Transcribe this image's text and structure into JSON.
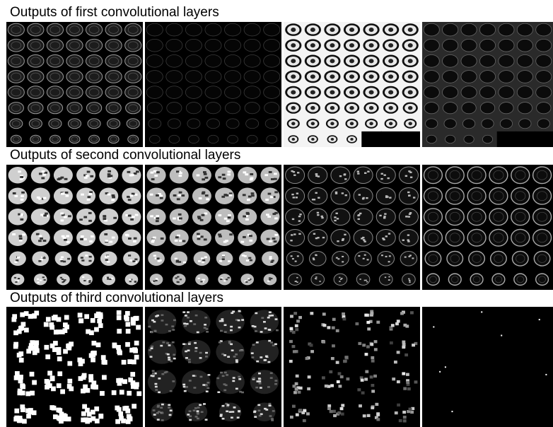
{
  "sections": [
    {
      "title": "Outputs of first convolutional layers",
      "panels": [
        {
          "style": "dark-edges",
          "cols": 7,
          "rows": 8,
          "cut": 0
        },
        {
          "style": "faint-edges",
          "cols": 7,
          "rows": 8,
          "cut": 0
        },
        {
          "style": "bright-inverted",
          "cols": 7,
          "rows": 8,
          "cut": 3
        },
        {
          "style": "gray-smooth",
          "cols": 7,
          "rows": 8,
          "cut": 3
        }
      ]
    },
    {
      "title": "Outputs of second convolutional layers",
      "panels": [
        {
          "style": "bright-blobs",
          "cols": 6,
          "rows": 6,
          "cut": 0
        },
        {
          "style": "textured-bright",
          "cols": 6,
          "rows": 6,
          "cut": 0
        },
        {
          "style": "edge-sparse",
          "cols": 6,
          "rows": 6,
          "cut": 0
        },
        {
          "style": "ring-edges",
          "cols": 6,
          "rows": 6,
          "cut": 0
        }
      ]
    },
    {
      "title": "Outputs of third convolutional layers",
      "panels": [
        {
          "style": "coarse-blobs",
          "cols": 4,
          "rows": 4,
          "cut": 0
        },
        {
          "style": "coarse-texture",
          "cols": 4,
          "rows": 4,
          "cut": 0
        },
        {
          "style": "coarse-sparse",
          "cols": 4,
          "rows": 4,
          "cut": 0
        },
        {
          "style": "dots",
          "cols": 4,
          "rows": 4,
          "cut": 0
        }
      ]
    }
  ]
}
